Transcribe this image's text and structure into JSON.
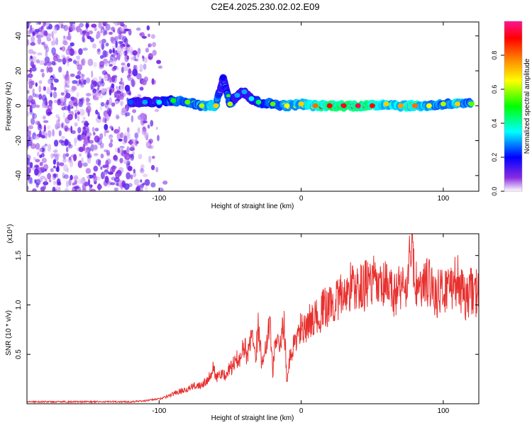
{
  "figure": {
    "title": "C2E4.2025.230.02.02.E09"
  },
  "chart_data": [
    {
      "type": "heatmap",
      "xlabel": "Height of straight line (km)",
      "ylabel": "Frequency (Hz)",
      "xlim": [
        -193,
        125
      ],
      "ylim": [
        -49,
        48
      ],
      "x_ticks": [
        -100,
        0,
        100
      ],
      "y_ticks": [
        -40,
        -20,
        0,
        20,
        40
      ],
      "grid": false,
      "colorbar": {
        "label": "Normalized spectral amplitude",
        "range": [
          0,
          1
        ],
        "ticks": [
          "0.0",
          "0.2",
          "0.4",
          "0.6",
          "0.8"
        ],
        "colors": [
          "#ffffff",
          "#8a2be2",
          "#0000ff",
          "#00ffff",
          "#00ff00",
          "#ffff00",
          "#ff8000",
          "#ff0000",
          "#ff1493"
        ]
      },
      "noise_region_x": [
        -193,
        -95
      ],
      "signal_band": [
        {
          "x": -120,
          "f": 2,
          "amp": 0.25
        },
        {
          "x": -110,
          "f": 2,
          "amp": 0.3
        },
        {
          "x": -100,
          "f": 2,
          "amp": 0.35
        },
        {
          "x": -90,
          "f": 3,
          "amp": 0.5
        },
        {
          "x": -80,
          "f": 2,
          "amp": 0.55
        },
        {
          "x": -70,
          "f": 0,
          "amp": 0.6
        },
        {
          "x": -60,
          "f": 0,
          "amp": 0.7
        },
        {
          "x": -55,
          "f": 16,
          "amp": 0.2
        },
        {
          "x": -50,
          "f": 1,
          "amp": 0.6
        },
        {
          "x": -45,
          "f": 6,
          "amp": 0.3
        },
        {
          "x": -40,
          "f": 8,
          "amp": 0.3
        },
        {
          "x": -35,
          "f": 4,
          "amp": 0.35
        },
        {
          "x": -30,
          "f": 2,
          "amp": 0.45
        },
        {
          "x": -20,
          "f": 1,
          "amp": 0.55
        },
        {
          "x": -10,
          "f": 0,
          "amp": 0.65
        },
        {
          "x": 0,
          "f": 1,
          "amp": 0.7
        },
        {
          "x": 10,
          "f": 0,
          "amp": 0.8
        },
        {
          "x": 20,
          "f": 0,
          "amp": 0.9
        },
        {
          "x": 30,
          "f": 0,
          "amp": 0.92
        },
        {
          "x": 40,
          "f": 0,
          "amp": 0.95
        },
        {
          "x": 50,
          "f": 0,
          "amp": 0.9
        },
        {
          "x": 60,
          "f": 1,
          "amp": 0.7
        },
        {
          "x": 70,
          "f": 0,
          "amp": 0.75
        },
        {
          "x": 80,
          "f": 0,
          "amp": 0.8
        },
        {
          "x": 90,
          "f": 0,
          "amp": 0.65
        },
        {
          "x": 100,
          "f": 1,
          "amp": 0.6
        },
        {
          "x": 110,
          "f": 1,
          "amp": 0.7
        },
        {
          "x": 120,
          "f": 1,
          "amp": 0.55
        }
      ]
    },
    {
      "type": "line",
      "xlabel": "Height of straight line (km)",
      "ylabel": "SNR (10 * v/v)",
      "y_scale_label": "(x10⁴)",
      "xlim": [
        -193,
        125
      ],
      "ylim": [
        0,
        1.72
      ],
      "x_ticks": [
        -100,
        0,
        100
      ],
      "y_ticks": [
        0.5,
        1.0,
        1.5
      ],
      "grid": false,
      "color": "#e8302e",
      "series": [
        {
          "x": [
            -193,
            -180,
            -160,
            -140,
            -120,
            -110,
            -100,
            -95,
            -90,
            -85,
            -80,
            -75,
            -70,
            -65,
            -62,
            -60,
            -58,
            -55,
            -50,
            -45,
            -42,
            -40,
            -38,
            -35,
            -32,
            -30,
            -28,
            -25,
            -22,
            -20,
            -18,
            -15,
            -12,
            -10,
            -8,
            -5,
            -2,
            0,
            3,
            5,
            8,
            10,
            15,
            20,
            25,
            30,
            35,
            40,
            45,
            50,
            55,
            60,
            65,
            70,
            75,
            78,
            80,
            85,
            90,
            95,
            100,
            105,
            110,
            115,
            120,
            125
          ],
          "y": [
            0.02,
            0.02,
            0.02,
            0.02,
            0.02,
            0.03,
            0.05,
            0.07,
            0.1,
            0.13,
            0.15,
            0.18,
            0.2,
            0.26,
            0.38,
            0.25,
            0.3,
            0.28,
            0.35,
            0.45,
            0.5,
            0.6,
            0.45,
            0.75,
            0.5,
            0.8,
            0.45,
            0.55,
            0.9,
            0.3,
            0.7,
            0.55,
            0.85,
            0.2,
            0.45,
            0.6,
            0.7,
            0.78,
            0.72,
            0.8,
            0.9,
            0.85,
            0.95,
            1.0,
            1.05,
            1.1,
            1.2,
            1.15,
            1.2,
            1.25,
            1.15,
            1.2,
            1.1,
            1.2,
            1.2,
            1.72,
            1.2,
            1.15,
            1.25,
            1.1,
            1.15,
            1.2,
            1.25,
            1.05,
            1.15,
            1.1
          ]
        }
      ]
    }
  ]
}
